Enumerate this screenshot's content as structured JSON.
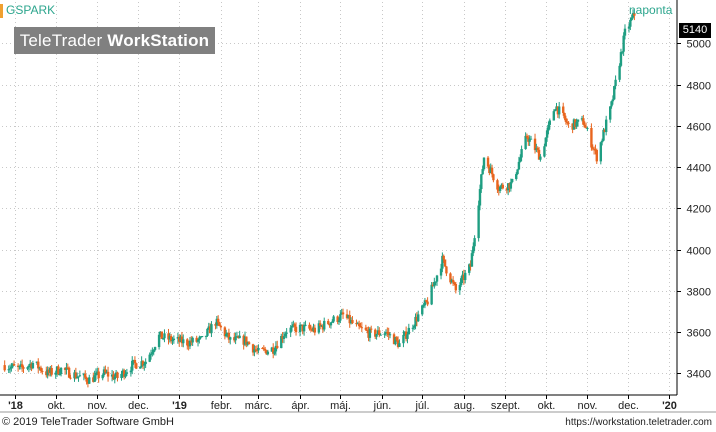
{
  "symbol": "GSPARK",
  "interval": "naponta",
  "logo": {
    "light": "TeleTrader ",
    "bold": "WorkStation"
  },
  "last_price": "5140",
  "footer": {
    "copyright": "© 2019 TeleTrader Software GmbH",
    "url": "https://workstation.teletrader.com"
  },
  "colors": {
    "up": "#1f9e82",
    "down": "#e8651e",
    "accent": "#2ca58d"
  },
  "chart_data": {
    "type": "candlestick",
    "title": "GSPARK",
    "ylim": [
      3300,
      5200
    ],
    "yticks": [
      3400,
      3600,
      3800,
      4000,
      4200,
      4400,
      4600,
      4800,
      5000
    ],
    "x_labels": [
      {
        "label": "'18",
        "date": "2018-09-01",
        "bold": true
      },
      {
        "label": "okt.",
        "date": "2018-10-01"
      },
      {
        "label": "nov.",
        "date": "2018-11-01"
      },
      {
        "label": "dec.",
        "date": "2018-12-01"
      },
      {
        "label": "'19",
        "date": "2019-01-01",
        "bold": true
      },
      {
        "label": "febr.",
        "date": "2019-02-01"
      },
      {
        "label": "márc.",
        "date": "2019-03-01"
      },
      {
        "label": "ápr.",
        "date": "2019-04-01"
      },
      {
        "label": "máj.",
        "date": "2019-05-01"
      },
      {
        "label": "jún.",
        "date": "2019-06-01"
      },
      {
        "label": "júl.",
        "date": "2019-07-01"
      },
      {
        "label": "aug.",
        "date": "2019-08-01"
      },
      {
        "label": "szept.",
        "date": "2019-09-01"
      },
      {
        "label": "okt.",
        "date": "2019-10-01"
      },
      {
        "label": "nov.",
        "date": "2019-11-01"
      },
      {
        "label": "dec.",
        "date": "2019-12-01"
      },
      {
        "label": "'20",
        "date": "2020-01-01",
        "bold": true
      }
    ],
    "series": [
      {
        "name": "GSPARK",
        "points": [
          {
            "date": "2018-08-24",
            "close": 3440
          },
          {
            "date": "2018-09-04",
            "close": 3420
          },
          {
            "date": "2018-09-14",
            "close": 3450
          },
          {
            "date": "2018-09-25",
            "close": 3400
          },
          {
            "date": "2018-10-05",
            "close": 3420
          },
          {
            "date": "2018-10-16",
            "close": 3390
          },
          {
            "date": "2018-10-26",
            "close": 3370
          },
          {
            "date": "2018-11-06",
            "close": 3400
          },
          {
            "date": "2018-11-16",
            "close": 3380
          },
          {
            "date": "2018-11-27",
            "close": 3440
          },
          {
            "date": "2018-12-07",
            "close": 3460
          },
          {
            "date": "2018-12-17",
            "close": 3580
          },
          {
            "date": "2018-12-28",
            "close": 3560
          },
          {
            "date": "2019-01-07",
            "close": 3550
          },
          {
            "date": "2019-01-18",
            "close": 3560
          },
          {
            "date": "2019-01-28",
            "close": 3650
          },
          {
            "date": "2019-02-08",
            "close": 3560
          },
          {
            "date": "2019-02-19",
            "close": 3560
          },
          {
            "date": "2019-03-01",
            "close": 3500
          },
          {
            "date": "2019-03-12",
            "close": 3520
          },
          {
            "date": "2019-03-22",
            "close": 3610
          },
          {
            "date": "2019-04-02",
            "close": 3620
          },
          {
            "date": "2019-04-12",
            "close": 3610
          },
          {
            "date": "2019-04-23",
            "close": 3650
          },
          {
            "date": "2019-05-03",
            "close": 3680
          },
          {
            "date": "2019-05-14",
            "close": 3620
          },
          {
            "date": "2019-05-24",
            "close": 3590
          },
          {
            "date": "2019-06-04",
            "close": 3600
          },
          {
            "date": "2019-06-14",
            "close": 3540
          },
          {
            "date": "2019-06-25",
            "close": 3650
          },
          {
            "date": "2019-07-05",
            "close": 3750
          },
          {
            "date": "2019-07-16",
            "close": 3950
          },
          {
            "date": "2019-07-26",
            "close": 3800
          },
          {
            "date": "2019-08-06",
            "close": 3920
          },
          {
            "date": "2019-08-16",
            "close": 4450
          },
          {
            "date": "2019-08-27",
            "close": 4300
          },
          {
            "date": "2019-09-06",
            "close": 4320
          },
          {
            "date": "2019-09-17",
            "close": 4550
          },
          {
            "date": "2019-09-27",
            "close": 4450
          },
          {
            "date": "2019-10-08",
            "close": 4700
          },
          {
            "date": "2019-10-18",
            "close": 4600
          },
          {
            "date": "2019-10-29",
            "close": 4620
          },
          {
            "date": "2019-11-08",
            "close": 4450
          },
          {
            "date": "2019-11-19",
            "close": 4700
          },
          {
            "date": "2019-11-29",
            "close": 5050
          },
          {
            "date": "2019-12-06",
            "close": 5140
          }
        ]
      }
    ]
  }
}
